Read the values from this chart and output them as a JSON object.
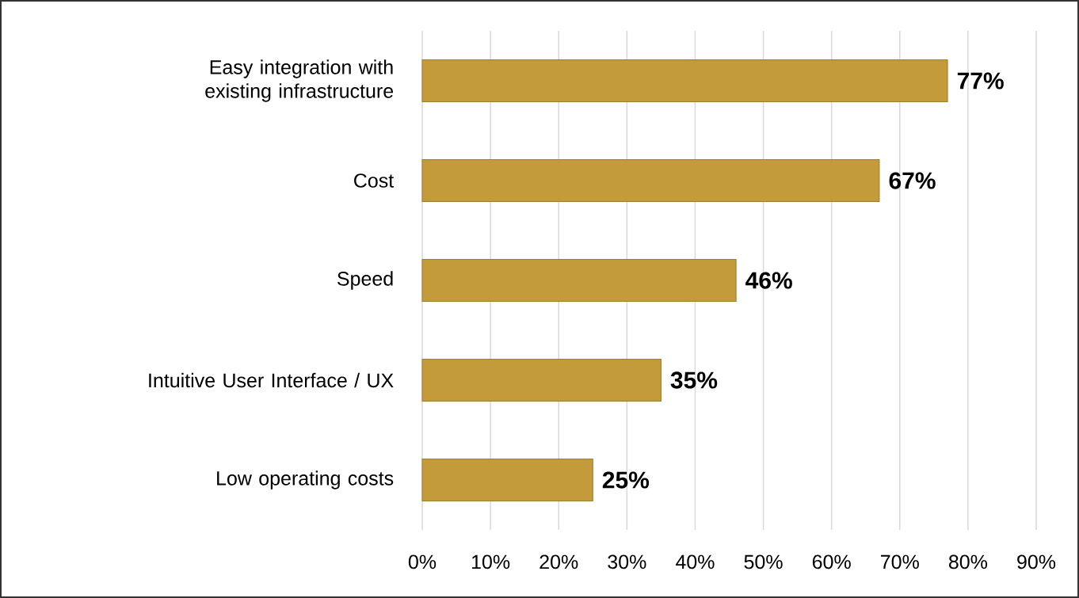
{
  "chart_data": {
    "type": "bar",
    "orientation": "horizontal",
    "categories": [
      "Easy integration with existing infrastructure",
      "Cost",
      "Speed",
      "Intuitive User Interface / UX",
      "Low operating costs"
    ],
    "values": [
      77,
      67,
      46,
      35,
      25
    ],
    "value_labels": [
      "77%",
      "67%",
      "46%",
      "35%",
      "25%"
    ],
    "color": "#c39b3a",
    "xlim": [
      0,
      90
    ],
    "xticks": [
      {
        "value": 0,
        "label": "0%"
      },
      {
        "value": 10,
        "label": "10%"
      },
      {
        "value": 20,
        "label": "20%"
      },
      {
        "value": 30,
        "label": "30%"
      },
      {
        "value": 40,
        "label": "40%"
      },
      {
        "value": 50,
        "label": "50%"
      },
      {
        "value": 60,
        "label": "60%"
      },
      {
        "value": 70,
        "label": "70%"
      },
      {
        "value": 80,
        "label": "80%"
      },
      {
        "value": 90,
        "label": "90%"
      }
    ],
    "grid": "x"
  }
}
